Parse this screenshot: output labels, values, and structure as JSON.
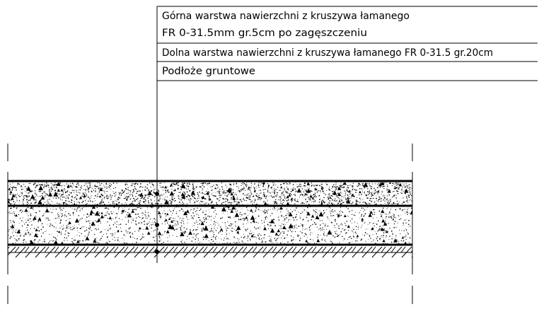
{
  "legend": {
    "rows": [
      {
        "lines": [
          "Górna warstwa nawierzchni z kruszywa łamanego",
          "FR 0-31.5mm gr.5cm po zagęszczeniu"
        ]
      },
      {
        "lines": [
          "Dolna warstwa nawierzchni z kruszywa łamanego FR 0-31.5 gr.20cm"
        ]
      },
      {
        "lines": [
          "Podłoże gruntowe"
        ]
      }
    ]
  },
  "layers": [
    {
      "name": "upper-aggregate-layer",
      "pattern": "fine-stipple"
    },
    {
      "name": "lower-aggregate-layer",
      "pattern": "coarse-stipple"
    },
    {
      "name": "subgrade-soil",
      "pattern": "earth-hatch"
    }
  ],
  "colors": {
    "ink": "#000000",
    "paper": "#ffffff"
  }
}
